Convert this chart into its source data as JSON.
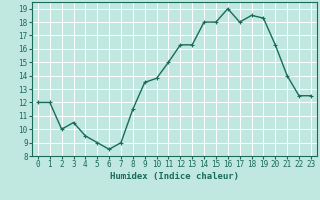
{
  "x": [
    0,
    1,
    2,
    3,
    4,
    5,
    6,
    7,
    8,
    9,
    10,
    11,
    12,
    13,
    14,
    15,
    16,
    17,
    18,
    19,
    20,
    21,
    22,
    23
  ],
  "y": [
    12,
    12,
    10,
    10.5,
    9.5,
    9,
    8.5,
    9,
    11.5,
    13.5,
    13.8,
    15,
    16.3,
    16.3,
    18,
    18,
    19,
    18,
    18.5,
    18.3,
    16.3,
    14,
    12.5,
    12.5
  ],
  "line_color": "#1a6b5a",
  "marker_color": "#1a6b5a",
  "bg_color": "#c0e8e0",
  "grid_major_color": "#ffffff",
  "grid_minor_color": "#d4e8e0",
  "xlabel": "Humidex (Indice chaleur)",
  "ylim": [
    8,
    19.5
  ],
  "xlim": [
    -0.5,
    23.5
  ],
  "yticks": [
    8,
    9,
    10,
    11,
    12,
    13,
    14,
    15,
    16,
    17,
    18,
    19
  ],
  "xticks": [
    0,
    1,
    2,
    3,
    4,
    5,
    6,
    7,
    8,
    9,
    10,
    11,
    12,
    13,
    14,
    15,
    16,
    17,
    18,
    19,
    20,
    21,
    22,
    23
  ],
  "xlabel_fontsize": 6.5,
  "tick_fontsize": 5.5,
  "line_width": 1.0,
  "marker_size": 2.5
}
